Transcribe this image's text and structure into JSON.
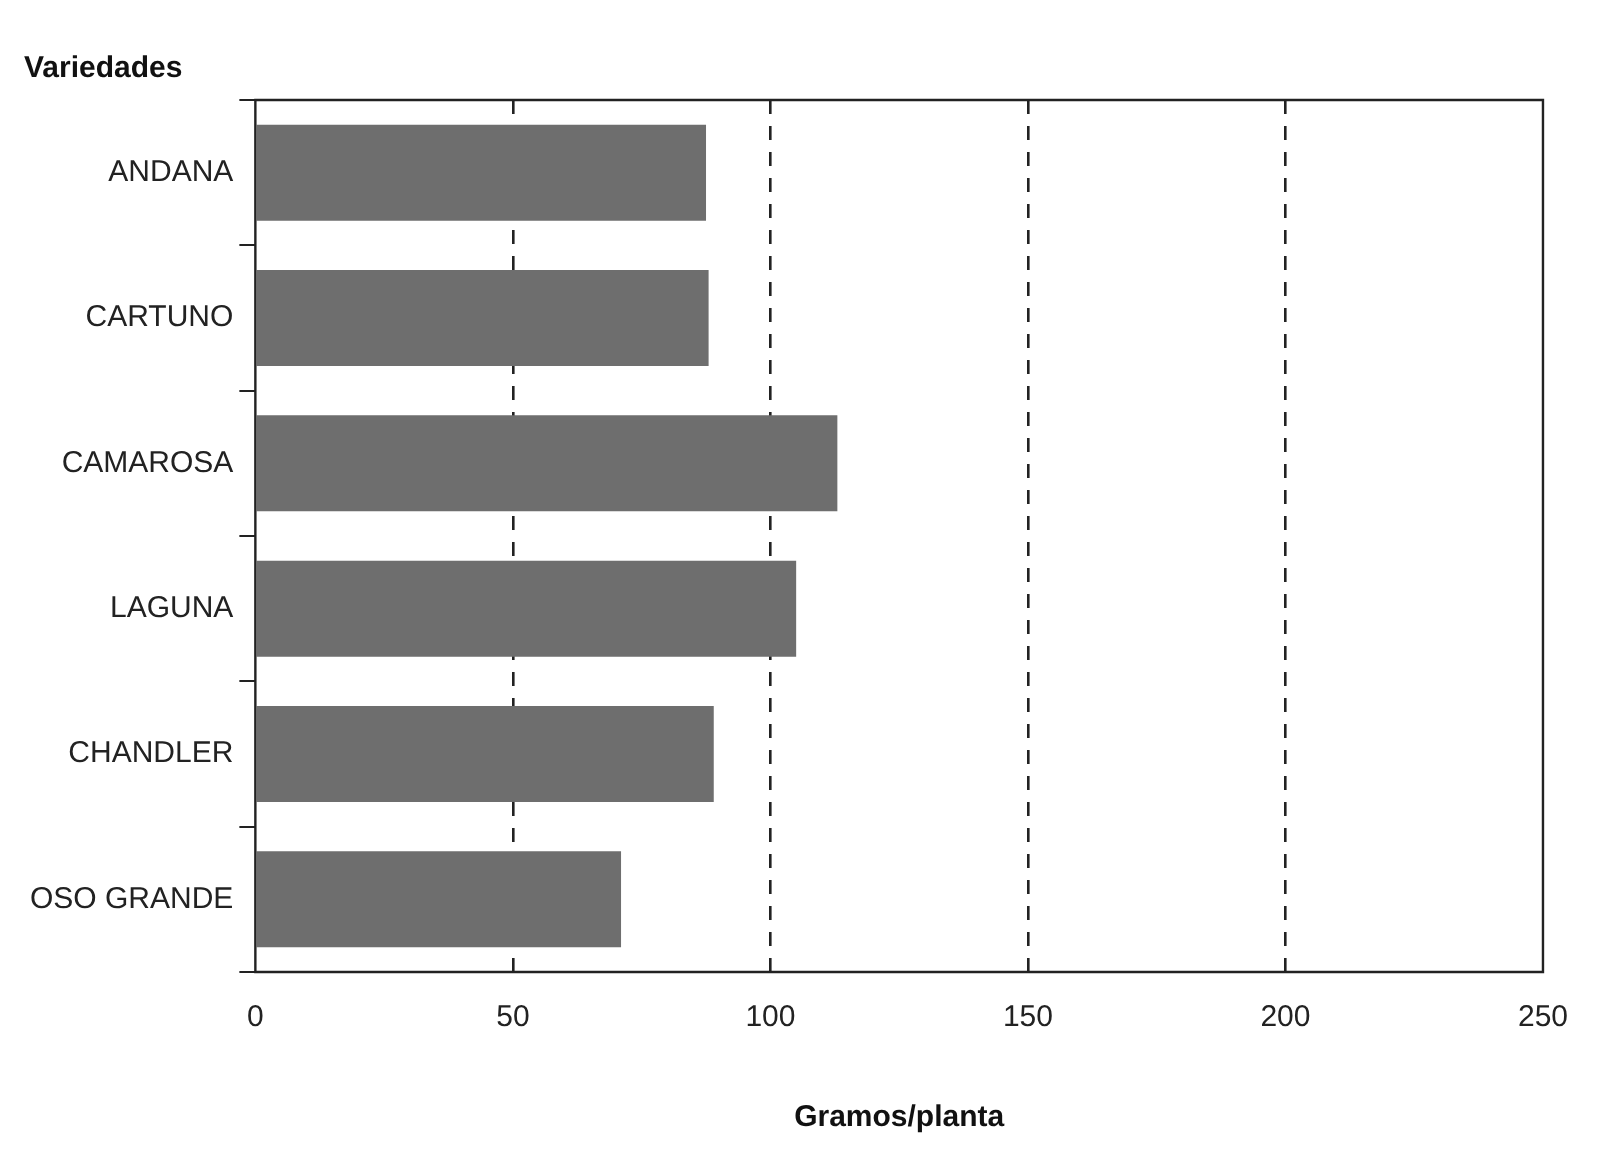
{
  "chart_data": {
    "type": "bar",
    "orientation": "horizontal",
    "ylabel": "Variedades",
    "xlabel": "Gramos/planta",
    "categories": [
      "ANDANA",
      "CARTUNO",
      "CAMAROSA",
      "LAGUNA",
      "CHANDLER",
      "OSO GRANDE"
    ],
    "values": [
      87.5,
      88,
      113,
      105,
      89,
      71
    ],
    "color": "#6e6e6e",
    "xlim": [
      0,
      250
    ],
    "xticks": [
      0,
      50,
      100,
      150,
      200,
      250
    ],
    "grid": "x",
    "line_style": "dashed",
    "legend": false
  }
}
